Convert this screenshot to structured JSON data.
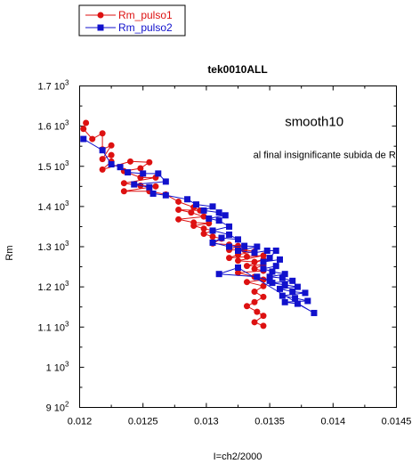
{
  "chart_data": {
    "type": "line",
    "title": "tek0010ALL",
    "xlabel": "I=ch2/2000",
    "ylabel": "Rm",
    "xlim": [
      0.012,
      0.0145
    ],
    "ylim": [
      900,
      1700
    ],
    "x_ticks": [
      0.012,
      0.0125,
      0.013,
      0.0135,
      0.014,
      0.0145
    ],
    "x_tick_labels": [
      "0.012",
      "0.0125",
      "0.013",
      "0.0135",
      "0.014",
      "0.0145"
    ],
    "y_ticks": [
      {
        "value": 900,
        "mantissa": "9",
        "exp": "2"
      },
      {
        "value": 1000,
        "mantissa": "1",
        "exp": "3"
      },
      {
        "value": 1100,
        "mantissa": "1.1",
        "exp": "3"
      },
      {
        "value": 1200,
        "mantissa": "1.2",
        "exp": "3"
      },
      {
        "value": 1300,
        "mantissa": "1.3",
        "exp": "3"
      },
      {
        "value": 1400,
        "mantissa": "1.4",
        "exp": "3"
      },
      {
        "value": 1500,
        "mantissa": "1.5",
        "exp": "3"
      },
      {
        "value": 1600,
        "mantissa": "1.6",
        "exp": "3"
      },
      {
        "value": 1700,
        "mantissa": "1.7",
        "exp": "3"
      }
    ],
    "tick_prefix": "10",
    "grid": false,
    "legend_position": "top-left-outside",
    "annotations": [
      {
        "text": "smooth10",
        "x": 0.01362,
        "y": 1600,
        "size": "large"
      },
      {
        "text": "al final insignificante subida de R",
        "x": 0.01337,
        "y": 1520,
        "size": "small"
      }
    ],
    "series": [
      {
        "name": "Rm_pulso1",
        "color": "#dd1111",
        "marker": "circle",
        "points": [
          [
            0.01205,
            1608
          ],
          [
            0.01203,
            1593
          ],
          [
            0.0121,
            1568
          ],
          [
            0.01218,
            1582
          ],
          [
            0.01218,
            1542
          ],
          [
            0.01225,
            1552
          ],
          [
            0.01218,
            1518
          ],
          [
            0.01225,
            1528
          ],
          [
            0.01225,
            1512
          ],
          [
            0.01218,
            1492
          ],
          [
            0.0124,
            1512
          ],
          [
            0.01255,
            1510
          ],
          [
            0.01248,
            1495
          ],
          [
            0.01235,
            1488
          ],
          [
            0.01248,
            1472
          ],
          [
            0.0126,
            1472
          ],
          [
            0.01235,
            1458
          ],
          [
            0.01248,
            1452
          ],
          [
            0.0126,
            1450
          ],
          [
            0.01235,
            1438
          ],
          [
            0.01255,
            1438
          ],
          [
            0.01268,
            1430
          ],
          [
            0.01278,
            1412
          ],
          [
            0.0129,
            1398
          ],
          [
            0.01295,
            1390
          ],
          [
            0.01278,
            1392
          ],
          [
            0.01288,
            1385
          ],
          [
            0.01298,
            1375
          ],
          [
            0.01278,
            1368
          ],
          [
            0.0129,
            1360
          ],
          [
            0.01302,
            1358
          ],
          [
            0.0129,
            1352
          ],
          [
            0.01298,
            1345
          ],
          [
            0.01305,
            1340
          ],
          [
            0.01298,
            1332
          ],
          [
            0.01305,
            1325
          ],
          [
            0.01312,
            1320
          ],
          [
            0.01305,
            1308
          ],
          [
            0.01318,
            1305
          ],
          [
            0.01325,
            1302
          ],
          [
            0.01318,
            1292
          ],
          [
            0.0133,
            1292
          ],
          [
            0.01338,
            1288
          ],
          [
            0.01325,
            1280
          ],
          [
            0.01318,
            1272
          ],
          [
            0.01332,
            1275
          ],
          [
            0.01345,
            1278
          ],
          [
            0.01325,
            1265
          ],
          [
            0.01338,
            1262
          ],
          [
            0.01345,
            1268
          ],
          [
            0.01332,
            1252
          ],
          [
            0.01345,
            1255
          ],
          [
            0.01338,
            1245
          ],
          [
            0.01345,
            1240
          ],
          [
            0.01325,
            1235
          ],
          [
            0.01338,
            1225
          ],
          [
            0.01345,
            1218
          ],
          [
            0.01332,
            1212
          ],
          [
            0.01345,
            1202
          ],
          [
            0.01338,
            1188
          ],
          [
            0.01345,
            1175
          ],
          [
            0.01338,
            1162
          ],
          [
            0.01332,
            1152
          ],
          [
            0.0134,
            1138
          ],
          [
            0.01345,
            1128
          ],
          [
            0.01338,
            1112
          ],
          [
            0.01345,
            1103
          ]
        ]
      },
      {
        "name": "Rm_pulso2",
        "color": "#1111cc",
        "marker": "square",
        "points": [
          [
            0.01203,
            1568
          ],
          [
            0.01218,
            1540
          ],
          [
            0.01225,
            1505
          ],
          [
            0.01232,
            1498
          ],
          [
            0.01238,
            1485
          ],
          [
            0.0125,
            1482
          ],
          [
            0.01262,
            1482
          ],
          [
            0.01268,
            1462
          ],
          [
            0.01243,
            1455
          ],
          [
            0.01255,
            1448
          ],
          [
            0.01258,
            1432
          ],
          [
            0.01268,
            1428
          ],
          [
            0.01285,
            1418
          ],
          [
            0.01292,
            1405
          ],
          [
            0.01305,
            1400
          ],
          [
            0.01298,
            1390
          ],
          [
            0.0131,
            1385
          ],
          [
            0.01315,
            1378
          ],
          [
            0.01302,
            1370
          ],
          [
            0.0131,
            1365
          ],
          [
            0.01318,
            1350
          ],
          [
            0.01305,
            1340
          ],
          [
            0.01318,
            1330
          ],
          [
            0.01325,
            1318
          ],
          [
            0.01312,
            1322
          ],
          [
            0.01305,
            1310
          ],
          [
            0.01318,
            1300
          ],
          [
            0.0133,
            1302
          ],
          [
            0.0134,
            1300
          ],
          [
            0.01325,
            1290
          ],
          [
            0.01338,
            1285
          ],
          [
            0.01348,
            1290
          ],
          [
            0.01355,
            1290
          ],
          [
            0.0135,
            1272
          ],
          [
            0.01345,
            1262
          ],
          [
            0.01358,
            1268
          ],
          [
            0.01355,
            1252
          ],
          [
            0.01345,
            1245
          ],
          [
            0.01352,
            1238
          ],
          [
            0.01362,
            1232
          ],
          [
            0.0135,
            1225
          ],
          [
            0.0136,
            1222
          ],
          [
            0.01368,
            1215
          ],
          [
            0.01352,
            1210
          ],
          [
            0.01362,
            1205
          ],
          [
            0.01372,
            1200
          ],
          [
            0.01358,
            1195
          ],
          [
            0.01368,
            1188
          ],
          [
            0.01378,
            1185
          ],
          [
            0.0136,
            1178
          ],
          [
            0.0137,
            1172
          ],
          [
            0.0138,
            1165
          ],
          [
            0.01362,
            1162
          ],
          [
            0.01372,
            1158
          ],
          [
            0.01385,
            1135
          ],
          [
            0.01325,
            1248
          ],
          [
            0.0131,
            1232
          ],
          [
            0.0134,
            1225
          ],
          [
            0.0135,
            1215
          ]
        ]
      }
    ]
  }
}
